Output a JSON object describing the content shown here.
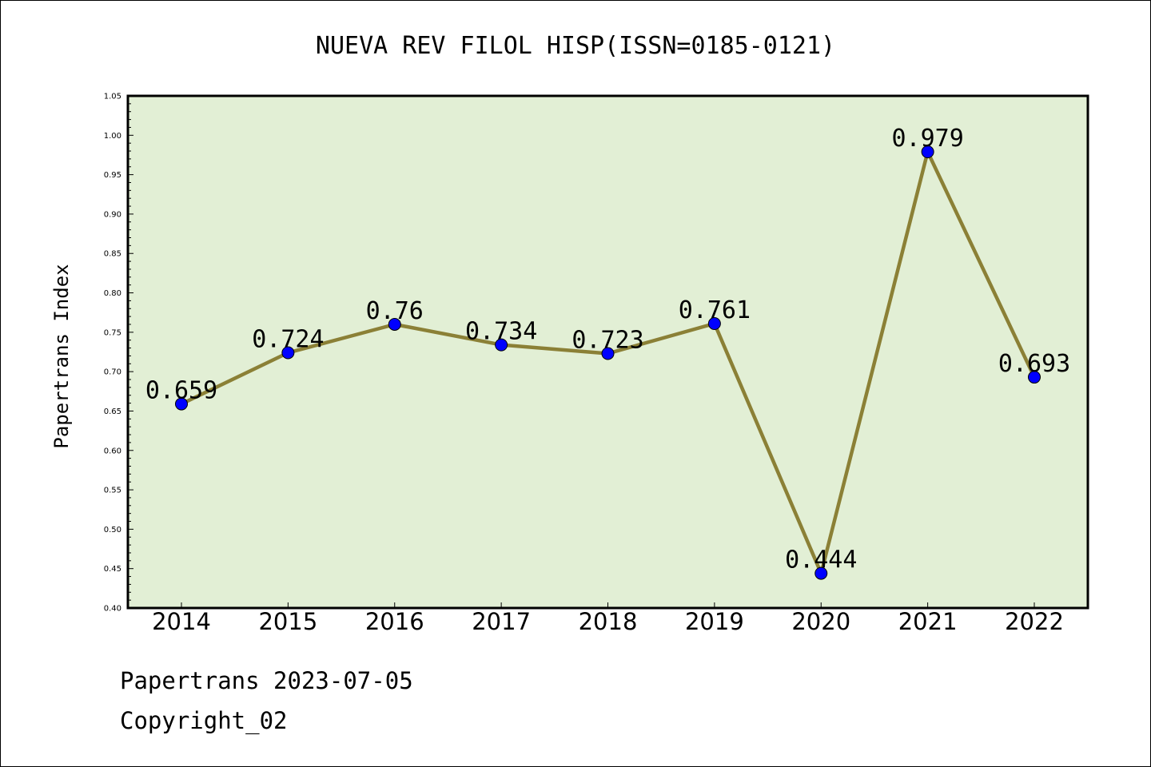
{
  "chart_data": {
    "type": "line",
    "title": "NUEVA REV FILOL HISP(ISSN=0185-0121)",
    "xlabel": "",
    "ylabel": "Papertrans Index",
    "categories": [
      "2014",
      "2015",
      "2016",
      "2017",
      "2018",
      "2019",
      "2020",
      "2021",
      "2022"
    ],
    "series": [
      {
        "values": [
          0.659,
          0.724,
          0.76,
          0.734,
          0.723,
          0.761,
          0.444,
          0.979,
          0.693
        ]
      }
    ],
    "data_labels": [
      "0.659",
      "0.724",
      "0.76",
      "0.734",
      "0.723",
      "0.761",
      "0.444",
      "0.979",
      "0.693"
    ],
    "ylim": [
      0.4,
      1.05
    ],
    "ytick_labels": [
      "0.40",
      "0.45",
      "0.50",
      "0.55",
      "0.60",
      "0.65",
      "0.70",
      "0.75",
      "0.80",
      "0.85",
      "0.90",
      "0.95",
      "1.00",
      "1.05"
    ],
    "grid": false,
    "colors": {
      "plot_background": "#e2efd5",
      "line": "#8b8036",
      "marker": "#0000ff"
    }
  },
  "footer": {
    "date_text": "Papertrans 2023-07-05",
    "copyright_text": "Copyright_02"
  }
}
